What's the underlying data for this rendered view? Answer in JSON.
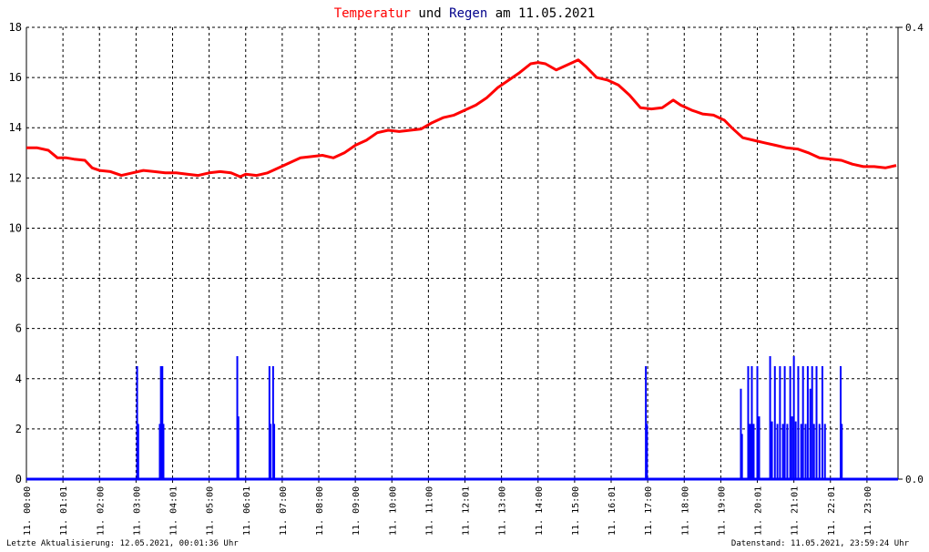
{
  "chart_data": {
    "type": "line",
    "title": {
      "part1": "Temperatur",
      "part2": " und ",
      "part3": "Regen",
      "part4": " am 11.05.2021",
      "color1": "#ff0000",
      "color3": "#00008b"
    },
    "x_ticks": [
      "11. 00:00",
      "11. 01:01",
      "11. 02:00",
      "11. 03:00",
      "11. 04:01",
      "11. 05:00",
      "11. 06:01",
      "11. 07:00",
      "11. 08:00",
      "11. 09:00",
      "11. 10:00",
      "11. 11:00",
      "11. 12:01",
      "11. 13:00",
      "11. 14:00",
      "11. 15:00",
      "11. 16:01",
      "11. 17:00",
      "11. 18:00",
      "11. 19:00",
      "11. 20:01",
      "11. 21:01",
      "11. 22:01",
      "11. 23:00"
    ],
    "y_left": {
      "ylim": [
        0,
        18
      ],
      "ticks": [
        "0",
        "2",
        "4",
        "6",
        "8",
        "10",
        "12",
        "14",
        "16",
        "18"
      ]
    },
    "y_right": {
      "ylim": [
        0,
        0.4
      ],
      "ticks": [
        "0.0",
        "0.4"
      ]
    },
    "grid": true,
    "series": [
      {
        "color": "#ff0000",
        "x": [
          0,
          0.3,
          0.6,
          0.85,
          1.1,
          1.3,
          1.6,
          1.8,
          2.0,
          2.3,
          2.6,
          2.9,
          3.2,
          3.5,
          3.8,
          4.1,
          4.4,
          4.7,
          5.0,
          5.3,
          5.6,
          5.85,
          6.0,
          6.3,
          6.6,
          6.9,
          7.2,
          7.5,
          7.8,
          8.1,
          8.4,
          8.7,
          9.0,
          9.3,
          9.6,
          9.9,
          10.2,
          10.5,
          10.8,
          11.1,
          11.4,
          11.7,
          12.0,
          12.3,
          12.6,
          12.9,
          13.2,
          13.5,
          13.8,
          14.0,
          14.2,
          14.5,
          14.8,
          15.1,
          15.3,
          15.6,
          15.9,
          16.2,
          16.5,
          16.8,
          17.1,
          17.4,
          17.7,
          17.9,
          18.2,
          18.5,
          18.8,
          19.1,
          19.3,
          19.6,
          19.9,
          20.2,
          20.5,
          20.8,
          21.1,
          21.4,
          21.7,
          22.0,
          22.3,
          22.6,
          22.9,
          23.2,
          23.5,
          23.8
        ],
        "y": [
          13.2,
          13.2,
          13.1,
          12.8,
          12.8,
          12.75,
          12.7,
          12.4,
          12.3,
          12.25,
          12.1,
          12.2,
          12.3,
          12.25,
          12.2,
          12.2,
          12.15,
          12.1,
          12.2,
          12.25,
          12.2,
          12.05,
          12.15,
          12.1,
          12.2,
          12.4,
          12.6,
          12.8,
          12.85,
          12.9,
          12.8,
          13.0,
          13.3,
          13.5,
          13.8,
          13.9,
          13.85,
          13.9,
          13.95,
          14.2,
          14.4,
          14.5,
          14.7,
          14.9,
          15.2,
          15.6,
          15.9,
          16.2,
          16.55,
          16.6,
          16.55,
          16.3,
          16.5,
          16.7,
          16.45,
          16.0,
          15.9,
          15.7,
          15.3,
          14.8,
          14.75,
          14.8,
          15.1,
          14.9,
          14.7,
          14.55,
          14.5,
          14.3,
          14.0,
          13.6,
          13.5,
          13.4,
          13.3,
          13.2,
          13.15,
          13.0,
          12.8,
          12.75,
          12.7,
          12.55,
          12.45,
          12.45,
          12.4,
          12.5
        ]
      },
      {
        "color": "#0000ff",
        "x": [
          3.03,
          3.06,
          3.65,
          3.68,
          3.72,
          3.75,
          5.77,
          5.8,
          6.65,
          6.68,
          6.75,
          6.78,
          16.95,
          16.98,
          19.55,
          19.58,
          19.75,
          19.8,
          19.85,
          19.9,
          20.0,
          20.05,
          20.35,
          20.4,
          20.48,
          20.55,
          20.62,
          20.7,
          20.75,
          20.82,
          20.9,
          20.95,
          21.0,
          21.05,
          21.12,
          21.2,
          21.25,
          21.32,
          21.38,
          21.45,
          21.5,
          21.55,
          21.62,
          21.7,
          21.78,
          21.85,
          22.28,
          22.31
        ],
        "y": [
          4.5,
          2.2,
          2.2,
          4.5,
          4.5,
          2.2,
          4.9,
          2.5,
          4.5,
          2.2,
          4.5,
          2.2,
          4.5,
          2.2,
          3.6,
          1.8,
          4.5,
          2.2,
          4.5,
          2.2,
          4.5,
          2.5,
          4.9,
          2.3,
          4.5,
          2.2,
          4.5,
          2.2,
          4.5,
          2.2,
          4.5,
          2.5,
          4.9,
          2.3,
          4.5,
          2.2,
          4.5,
          2.2,
          4.5,
          3.6,
          4.5,
          2.2,
          4.5,
          2.2,
          4.5,
          2.2,
          4.5,
          2.2
        ]
      }
    ]
  },
  "footer": {
    "left": "Letzte Aktualisierung: 12.05.2021, 00:01:36 Uhr",
    "right": "Datenstand: 11.05.2021, 23:59:24 Uhr"
  }
}
